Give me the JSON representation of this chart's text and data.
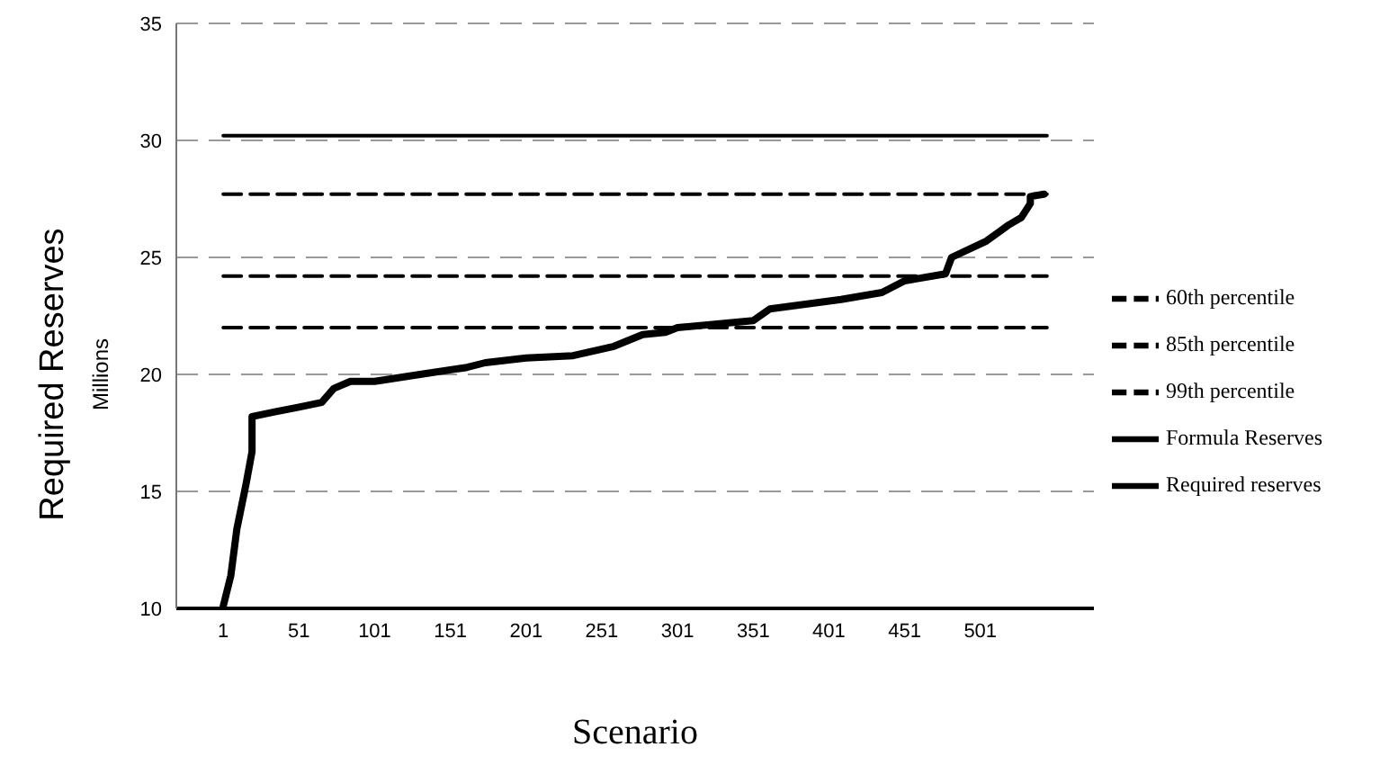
{
  "chart_data": {
    "type": "line",
    "xlabel": "Scenario",
    "ylabel": "Required Reserves",
    "annotations": [
      "Millions"
    ],
    "xlim": [
      -30,
      576
    ],
    "xticks": [
      1,
      51,
      101,
      151,
      201,
      251,
      301,
      351,
      401,
      451,
      501
    ],
    "ylim": [
      10,
      35
    ],
    "yticks": [
      10,
      15,
      20,
      25,
      30,
      35
    ],
    "grid": "y",
    "legend": "right",
    "marker": "none",
    "series": [
      {
        "name": "Required reserves",
        "color": "#000000",
        "line_style": "solid",
        "x": [
          1,
          6,
          10,
          16,
          20,
          20,
          35,
          51,
          66,
          74,
          85,
          101,
          131,
          162,
          174,
          201,
          232,
          259,
          278,
          293,
          301,
          351,
          362,
          409,
          436,
          451,
          478,
          482,
          505,
          520,
          528,
          534,
          534,
          543
        ],
        "values": [
          10.1,
          11.4,
          13.4,
          15.3,
          16.7,
          18.2,
          18.4,
          18.6,
          18.8,
          19.4,
          19.7,
          19.7,
          20.0,
          20.3,
          20.5,
          20.7,
          20.8,
          21.2,
          21.7,
          21.8,
          22.0,
          22.3,
          22.8,
          23.2,
          23.5,
          24.0,
          24.3,
          25.0,
          25.7,
          26.4,
          26.7,
          27.3,
          27.6,
          27.7
        ]
      },
      {
        "name": "60th percentile",
        "color": "#000000",
        "line_style": "dashed",
        "x": [
          1,
          545
        ],
        "values": [
          22.0,
          22.0
        ]
      },
      {
        "name": "85th percentile",
        "color": "#000000",
        "line_style": "dashed",
        "x": [
          1,
          545
        ],
        "values": [
          24.2,
          24.2
        ]
      },
      {
        "name": "99th percentile",
        "color": "#000000",
        "line_style": "dashed",
        "x": [
          1,
          545
        ],
        "values": [
          27.7,
          27.7
        ]
      },
      {
        "name": "Formula Reserves",
        "color": "#000000",
        "line_style": "solid",
        "x": [
          1,
          545
        ],
        "values": [
          30.2,
          30.2
        ]
      }
    ]
  }
}
